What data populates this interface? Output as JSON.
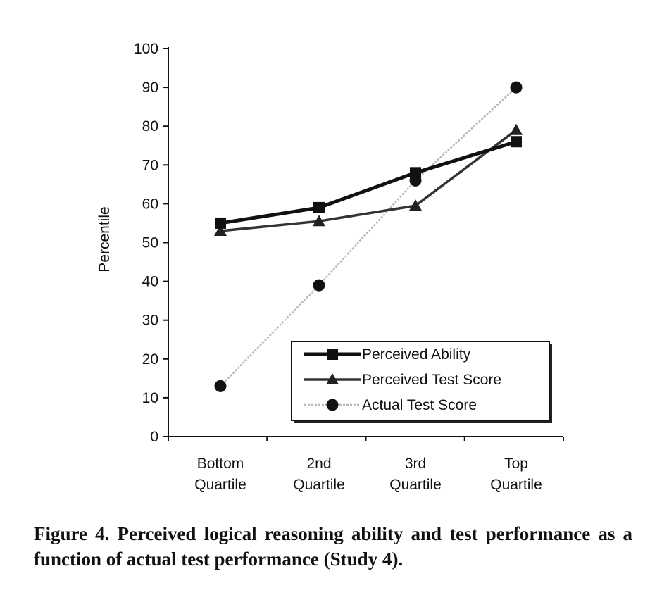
{
  "chart_data": {
    "type": "line",
    "categories": [
      "Bottom\nQuartile",
      "2nd\nQuartile",
      "3rd\nQuartile",
      "Top\nQuartile"
    ],
    "ylabel": "Percentile",
    "xlabel": "",
    "ylim": [
      0,
      100
    ],
    "yticks": [
      0,
      10,
      20,
      30,
      40,
      50,
      60,
      70,
      80,
      90,
      100
    ],
    "grid": false,
    "legend_position": "bottom-right",
    "series": [
      {
        "name": "Perceived Ability",
        "marker": "square",
        "line": "thick-solid",
        "color": "#111111",
        "values": [
          55,
          59,
          68,
          76
        ]
      },
      {
        "name": "Perceived Test Score",
        "marker": "triangle",
        "line": "solid",
        "color": "#333333",
        "values": [
          53,
          55.5,
          59.5,
          79
        ]
      },
      {
        "name": "Actual Test Score",
        "marker": "circle",
        "line": "dotted-gray",
        "color": "#b8b8b8",
        "values": [
          13,
          39,
          66,
          90
        ]
      }
    ]
  },
  "caption": "Figure 4. Perceived logical reasoning ability and test performance as a function of actual test performance (Study 4)."
}
